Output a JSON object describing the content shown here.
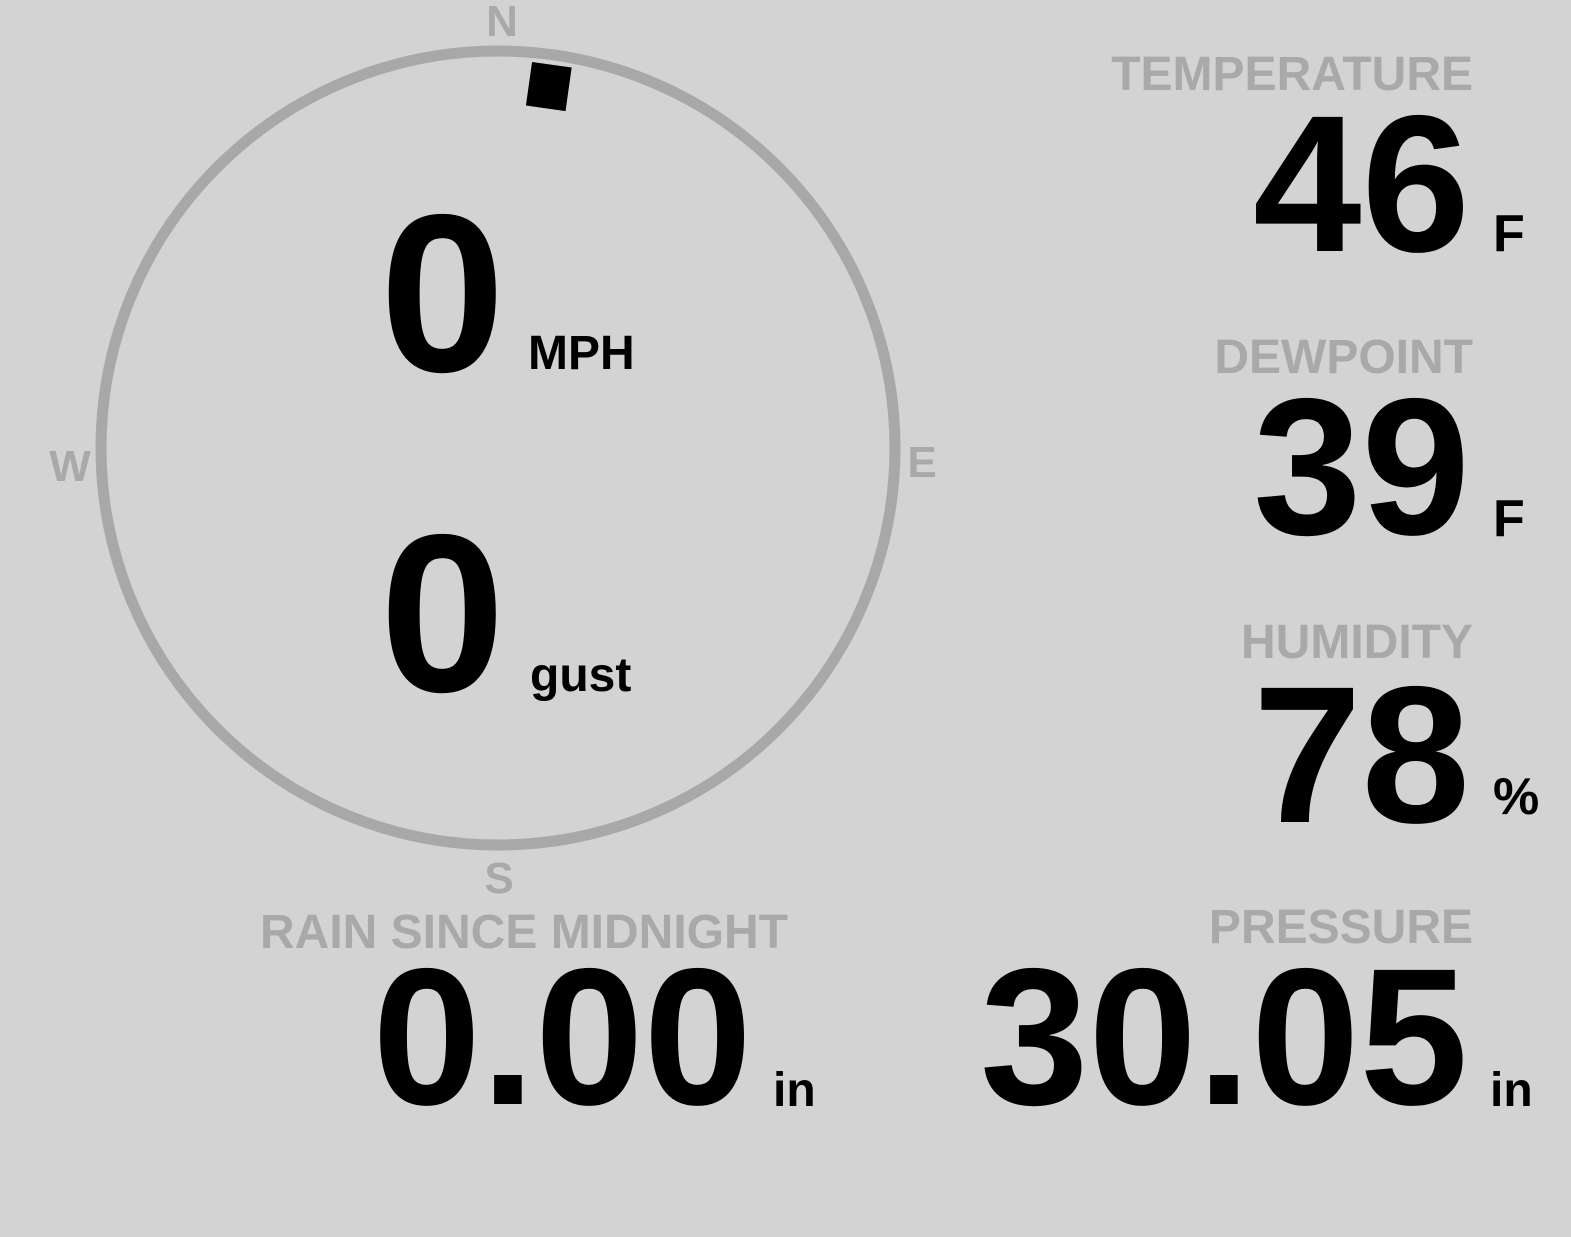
{
  "colors": {
    "background": "#d3d3d3",
    "label": "#a9a9a9",
    "value": "#000000",
    "ring": "#a8a8a8"
  },
  "wind": {
    "direction_degrees": 8,
    "compass": {
      "n": "N",
      "e": "E",
      "s": "S",
      "w": "W"
    },
    "speed": "0",
    "speed_unit": "MPH",
    "gust": "0",
    "gust_unit": "gust"
  },
  "temperature": {
    "label": "TEMPERATURE",
    "value": "46",
    "unit": "F"
  },
  "dewpoint": {
    "label": "DEWPOINT",
    "value": "39",
    "unit": "F"
  },
  "humidity": {
    "label": "HUMIDITY",
    "value": "78",
    "unit": "%"
  },
  "rain": {
    "label": "RAIN SINCE MIDNIGHT",
    "value": "0.00",
    "unit": "in"
  },
  "pressure": {
    "label": "PRESSURE",
    "value": "30.05",
    "unit": "in"
  }
}
